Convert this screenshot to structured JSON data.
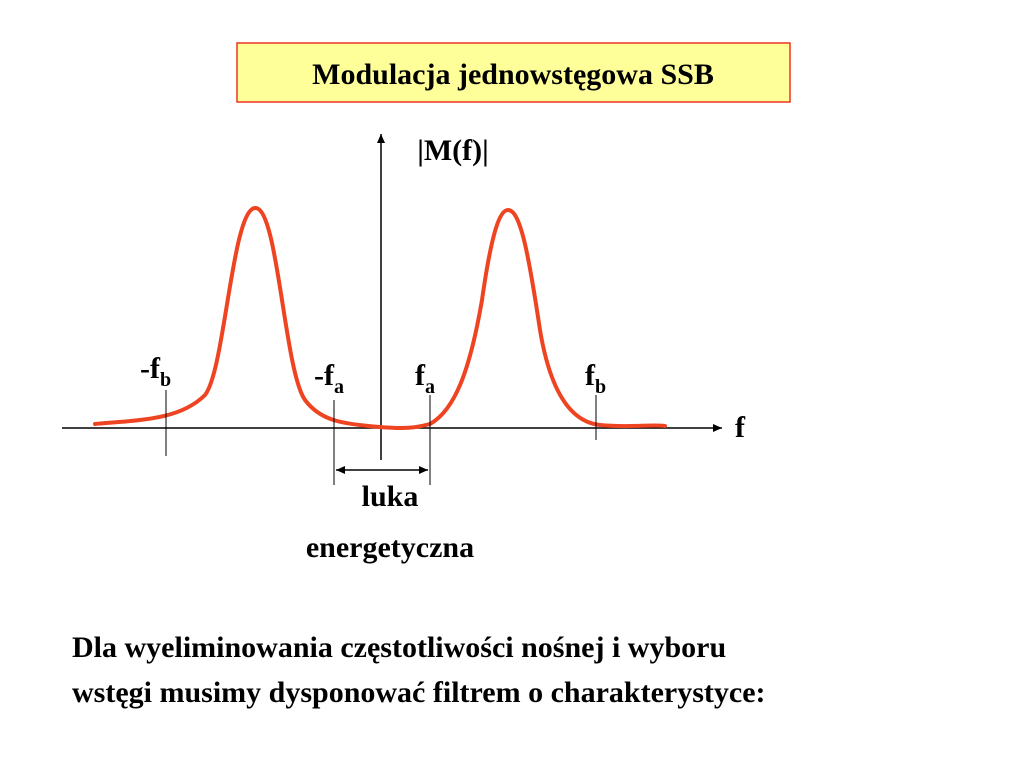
{
  "title": "Modulacja jednowstęgowa SSB",
  "axes": {
    "y_label": "|M(f)|",
    "x_label": "f"
  },
  "markers": [
    {
      "main": "-f",
      "sub": "b"
    },
    {
      "main": "-f",
      "sub": "a"
    },
    {
      "main": "f",
      "sub": "a"
    },
    {
      "main": "f",
      "sub": "b"
    }
  ],
  "gap_label": [
    "luka",
    "energetyczna"
  ],
  "body": [
    "Dla wyeliminowania częstotliwości nośnej i wyboru",
    "wstęgi musimy dysponować filtrem o charakterystyce:"
  ]
}
